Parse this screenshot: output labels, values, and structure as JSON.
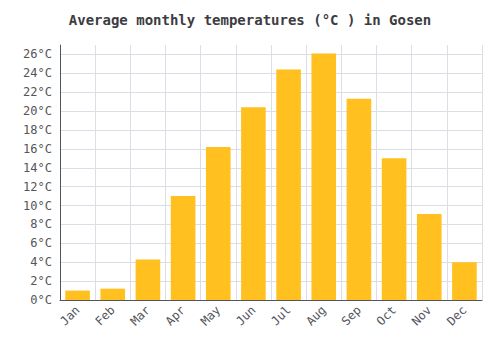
{
  "chart_data": {
    "type": "bar",
    "title": "Average monthly temperatures (°C ) in Gosen",
    "categories": [
      "Jan",
      "Feb",
      "Mar",
      "Apr",
      "May",
      "Jun",
      "Jul",
      "Aug",
      "Sep",
      "Oct",
      "Nov",
      "Dec"
    ],
    "values": [
      1.0,
      1.2,
      4.3,
      11.0,
      16.2,
      20.4,
      24.4,
      26.1,
      21.3,
      15.0,
      9.1,
      4.0
    ],
    "color": "#FFC020",
    "ylim": [
      0,
      27
    ],
    "yticks": [
      {
        "value": 0,
        "label": "0°C"
      },
      {
        "value": 2,
        "label": "2°C"
      },
      {
        "value": 4,
        "label": "4°C"
      },
      {
        "value": 6,
        "label": "6°C"
      },
      {
        "value": 8,
        "label": "8°C"
      },
      {
        "value": 10,
        "label": "10°C"
      },
      {
        "value": 12,
        "label": "12°C"
      },
      {
        "value": 14,
        "label": "14°C"
      },
      {
        "value": 16,
        "label": "16°C"
      },
      {
        "value": 18,
        "label": "18°C"
      },
      {
        "value": 20,
        "label": "20°C"
      },
      {
        "value": 22,
        "label": "22°C"
      },
      {
        "value": 24,
        "label": "24°C"
      },
      {
        "value": 26,
        "label": "26°C"
      }
    ],
    "grid": true
  }
}
